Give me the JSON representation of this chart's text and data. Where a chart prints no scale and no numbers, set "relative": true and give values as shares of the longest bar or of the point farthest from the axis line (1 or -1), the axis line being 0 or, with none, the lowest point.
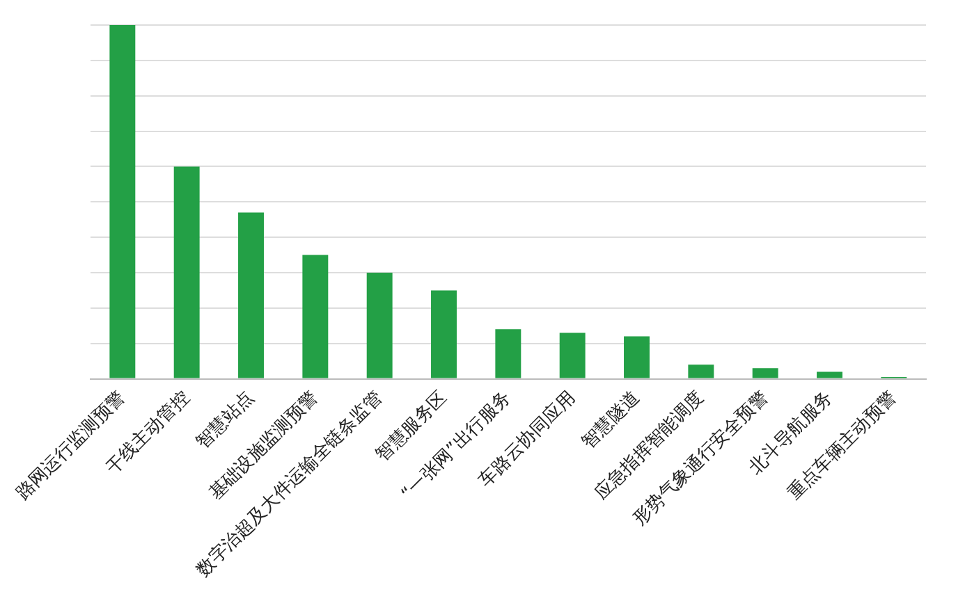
{
  "chart_data": {
    "type": "bar",
    "relative": true,
    "grid": "y",
    "categories": [
      "路网运行监测预警",
      "干线主动管控",
      "智慧站点",
      "基础设施监测预警",
      "数字治超及大件运输全链条监管",
      "智慧服务区",
      "“一张网”出行服务",
      "车路云协同应用",
      "智慧隧道",
      "应急指挥智能调度",
      "形势气象通行安全预警",
      "北斗导航服务",
      "重点车辆主动预警"
    ],
    "values": [
      1,
      0.6,
      0.47,
      0.35,
      0.3,
      0.25,
      0.14,
      0.13,
      0.12,
      0.04,
      0.03,
      0.02,
      0.005
    ],
    "color": "#23a046"
  }
}
